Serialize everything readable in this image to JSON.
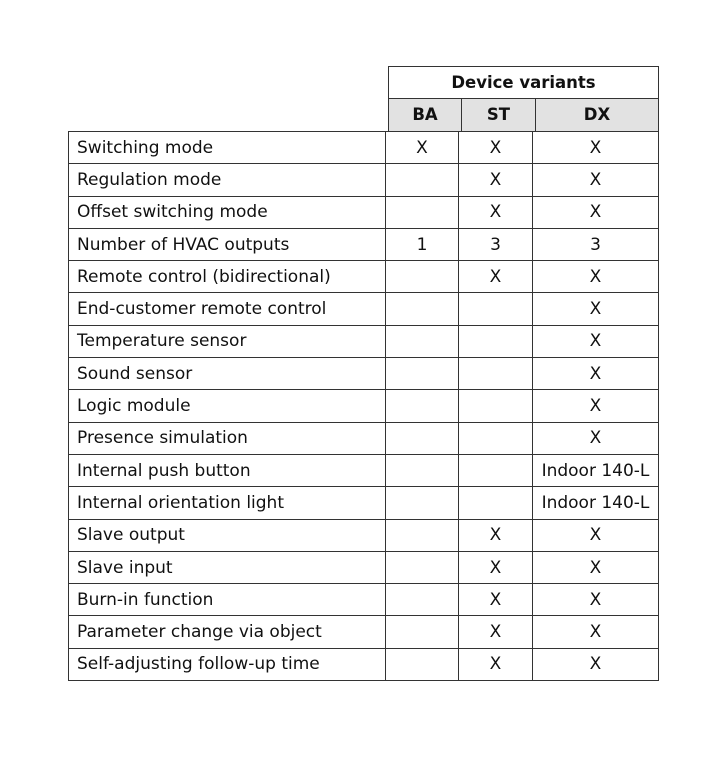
{
  "header": {
    "title": "Device variants",
    "columns": [
      "BA",
      "ST",
      "DX"
    ]
  },
  "rows": [
    {
      "label": "Switching mode",
      "BA": "X",
      "ST": "X",
      "DX": "X"
    },
    {
      "label": "Regulation mode",
      "BA": "",
      "ST": "X",
      "DX": "X"
    },
    {
      "label": "Offset switching mode",
      "BA": "",
      "ST": "X",
      "DX": "X"
    },
    {
      "label": "Number of HVAC outputs",
      "BA": "1",
      "ST": "3",
      "DX": "3"
    },
    {
      "label": "Remote control (bidirectional)",
      "BA": "",
      "ST": "X",
      "DX": "X"
    },
    {
      "label": "End-customer remote control",
      "BA": "",
      "ST": "",
      "DX": "X"
    },
    {
      "label": "Temperature sensor",
      "BA": "",
      "ST": "",
      "DX": "X"
    },
    {
      "label": "Sound sensor",
      "BA": "",
      "ST": "",
      "DX": "X"
    },
    {
      "label": "Logic module",
      "BA": "",
      "ST": "",
      "DX": "X"
    },
    {
      "label": "Presence simulation",
      "BA": "",
      "ST": "",
      "DX": "X"
    },
    {
      "label": "Internal push button",
      "BA": "",
      "ST": "",
      "DX": "Indoor 140-L"
    },
    {
      "label": "Internal orientation light",
      "BA": "",
      "ST": "",
      "DX": "Indoor 140-L"
    },
    {
      "label": "Slave output",
      "BA": "",
      "ST": "X",
      "DX": "X"
    },
    {
      "label": "Slave input",
      "BA": "",
      "ST": "X",
      "DX": "X"
    },
    {
      "label": "Burn-in function",
      "BA": "",
      "ST": "X",
      "DX": "X"
    },
    {
      "label": "Parameter change via object",
      "BA": "",
      "ST": "X",
      "DX": "X"
    },
    {
      "label": "Self-adjusting follow-up time",
      "BA": "",
      "ST": "X",
      "DX": "X"
    }
  ]
}
